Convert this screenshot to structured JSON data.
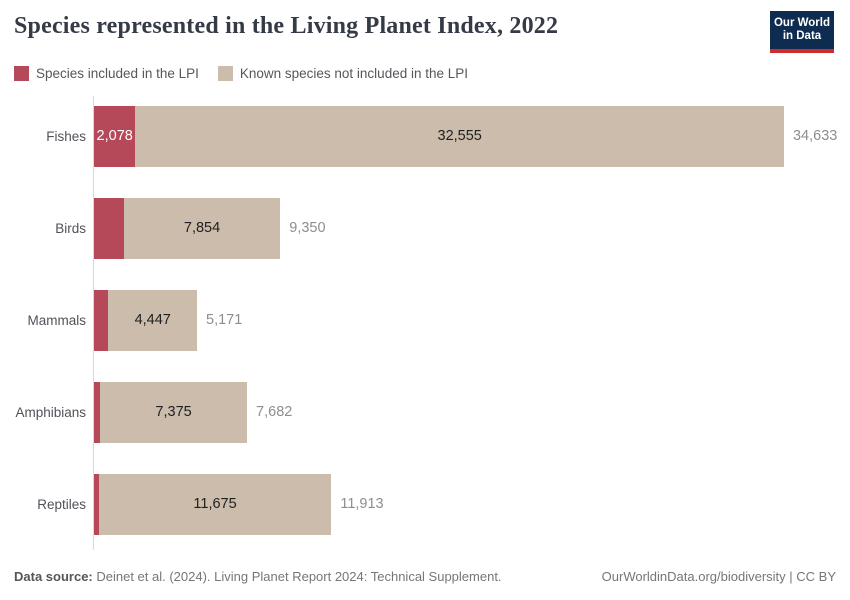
{
  "header": {
    "title": "Species represented in the Living Planet Index, 2022"
  },
  "logo": {
    "line1": "Our World",
    "line2": "in Data",
    "bg_color": "#0e2c4f",
    "accent_color": "#cb2d2c"
  },
  "legend": {
    "items": [
      {
        "label": "Species included in the LPI",
        "color": "#b5495a"
      },
      {
        "label": "Known species not included in the LPI",
        "color": "#cbbcab"
      }
    ]
  },
  "chart_data": {
    "type": "bar",
    "orientation": "horizontal",
    "stacked": true,
    "title": "Species represented in the Living Planet Index, 2022",
    "categories": [
      "Fishes",
      "Birds",
      "Mammals",
      "Amphibians",
      "Reptiles"
    ],
    "series": [
      {
        "name": "Species included in the LPI",
        "color": "#b5495a",
        "values": [
          2078,
          1496,
          724,
          307,
          238
        ]
      },
      {
        "name": "Known species not included in the LPI",
        "color": "#cbbcab",
        "values": [
          32555,
          7854,
          4447,
          7375,
          11675
        ]
      }
    ],
    "totals": [
      34633,
      9350,
      5171,
      7682,
      11913
    ],
    "segment_labels_included": [
      "2,078",
      null,
      null,
      null,
      null
    ],
    "segment_labels_not_included": [
      "32,555",
      "7,854",
      "4,447",
      "7,375",
      "11,675"
    ],
    "total_labels": [
      "34,633",
      "9,350",
      "5,171",
      "7,682",
      "11,913"
    ],
    "xlim": [
      0,
      34633
    ],
    "grid": false,
    "legend_position": "top",
    "axis_color": "#d9d9d9"
  },
  "footer": {
    "source_label": "Data source:",
    "source_text": " Deinet et al. (2024). Living Planet Report 2024: Technical Supplement.",
    "credit": "OurWorldinData.org/biodiversity | CC BY"
  }
}
